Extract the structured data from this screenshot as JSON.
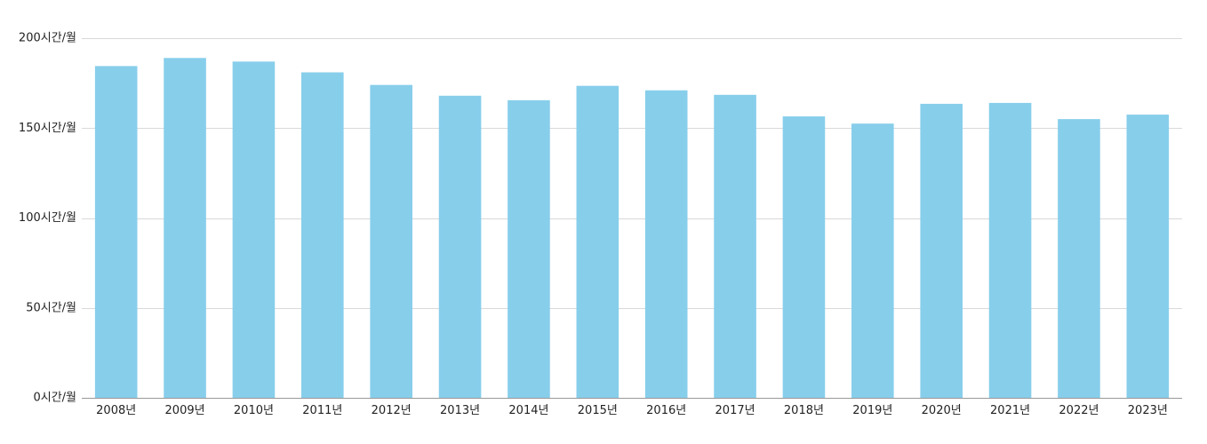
{
  "chart_data": {
    "type": "bar",
    "title": "",
    "xlabel": "",
    "ylabel": "",
    "categories": [
      "2008년",
      "2009년",
      "2010년",
      "2011년",
      "2012년",
      "2013년",
      "2014년",
      "2015년",
      "2016년",
      "2017년",
      "2018년",
      "2019년",
      "2020년",
      "2021년",
      "2022년",
      "2023년"
    ],
    "values": [
      184.5,
      189,
      187,
      181,
      174,
      168,
      165.5,
      173.5,
      171,
      168.5,
      156.5,
      152.5,
      163.5,
      164,
      155,
      157.5
    ],
    "ylim": [
      0,
      200
    ],
    "yticks": [
      0,
      50,
      100,
      150,
      200
    ],
    "ytick_labels": [
      "0시간/월",
      "50시간/월",
      "100시간/월",
      "150시간/월",
      "200시간/월"
    ],
    "grid": true,
    "bar_color": "#87ceeb",
    "grid_color": "#d9d9d9",
    "axis_color": "#999999"
  }
}
